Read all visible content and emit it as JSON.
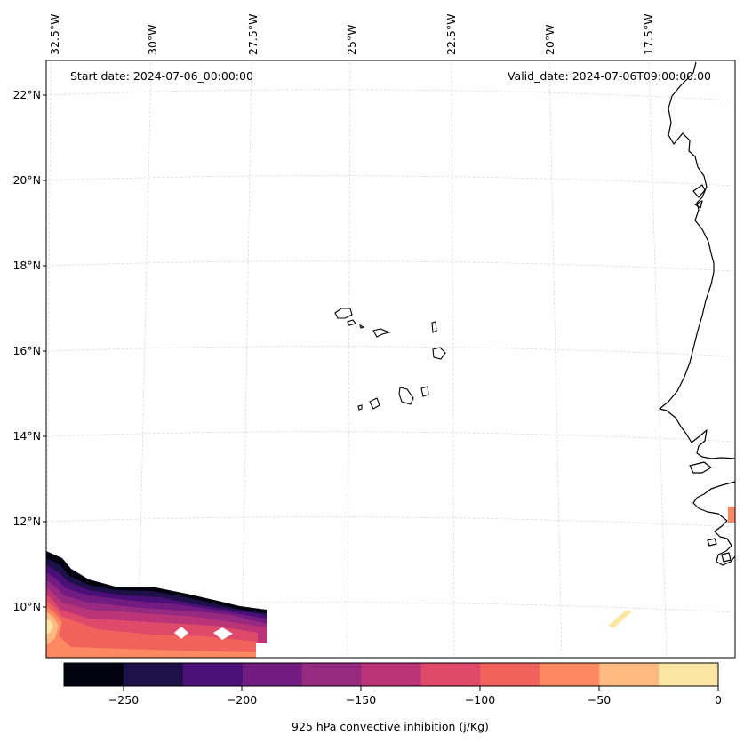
{
  "map": {
    "start_date": "Start date: 2024-07-06_00:00:00",
    "valid_date": "Valid_date: 2024-07-06T09:00:00.00",
    "lon_labels": [
      "32.5°W",
      "30°W",
      "27.5°W",
      "25°W",
      "22.5°W",
      "20°W",
      "17.5°W"
    ],
    "lat_labels": [
      "22°N",
      "20°N",
      "18°N",
      "16°N",
      "14°N",
      "12°N",
      "10°N"
    ]
  },
  "colorbar": {
    "label": "925 hPa convective inhibition (j/Kg)",
    "ticks": [
      "−250",
      "−200",
      "−150",
      "−100",
      "−50",
      "0"
    ],
    "bins": [
      {
        "from": -275,
        "to": -250,
        "color": "#03030f"
      },
      {
        "from": -250,
        "to": -225,
        "color": "#1e1048"
      },
      {
        "from": -225,
        "to": -200,
        "color": "#4b0f78"
      },
      {
        "from": -200,
        "to": -175,
        "color": "#721c82"
      },
      {
        "from": -175,
        "to": -150,
        "color": "#962a80"
      },
      {
        "from": -150,
        "to": -125,
        "color": "#bc3478"
      },
      {
        "from": -125,
        "to": -100,
        "color": "#df4a6a"
      },
      {
        "from": -100,
        "to": -75,
        "color": "#f2625c"
      },
      {
        "from": -75,
        "to": -50,
        "color": "#fc8961"
      },
      {
        "from": -50,
        "to": -25,
        "color": "#feba80"
      },
      {
        "from": -25,
        "to": 0,
        "color": "#fde6a4"
      }
    ]
  }
}
